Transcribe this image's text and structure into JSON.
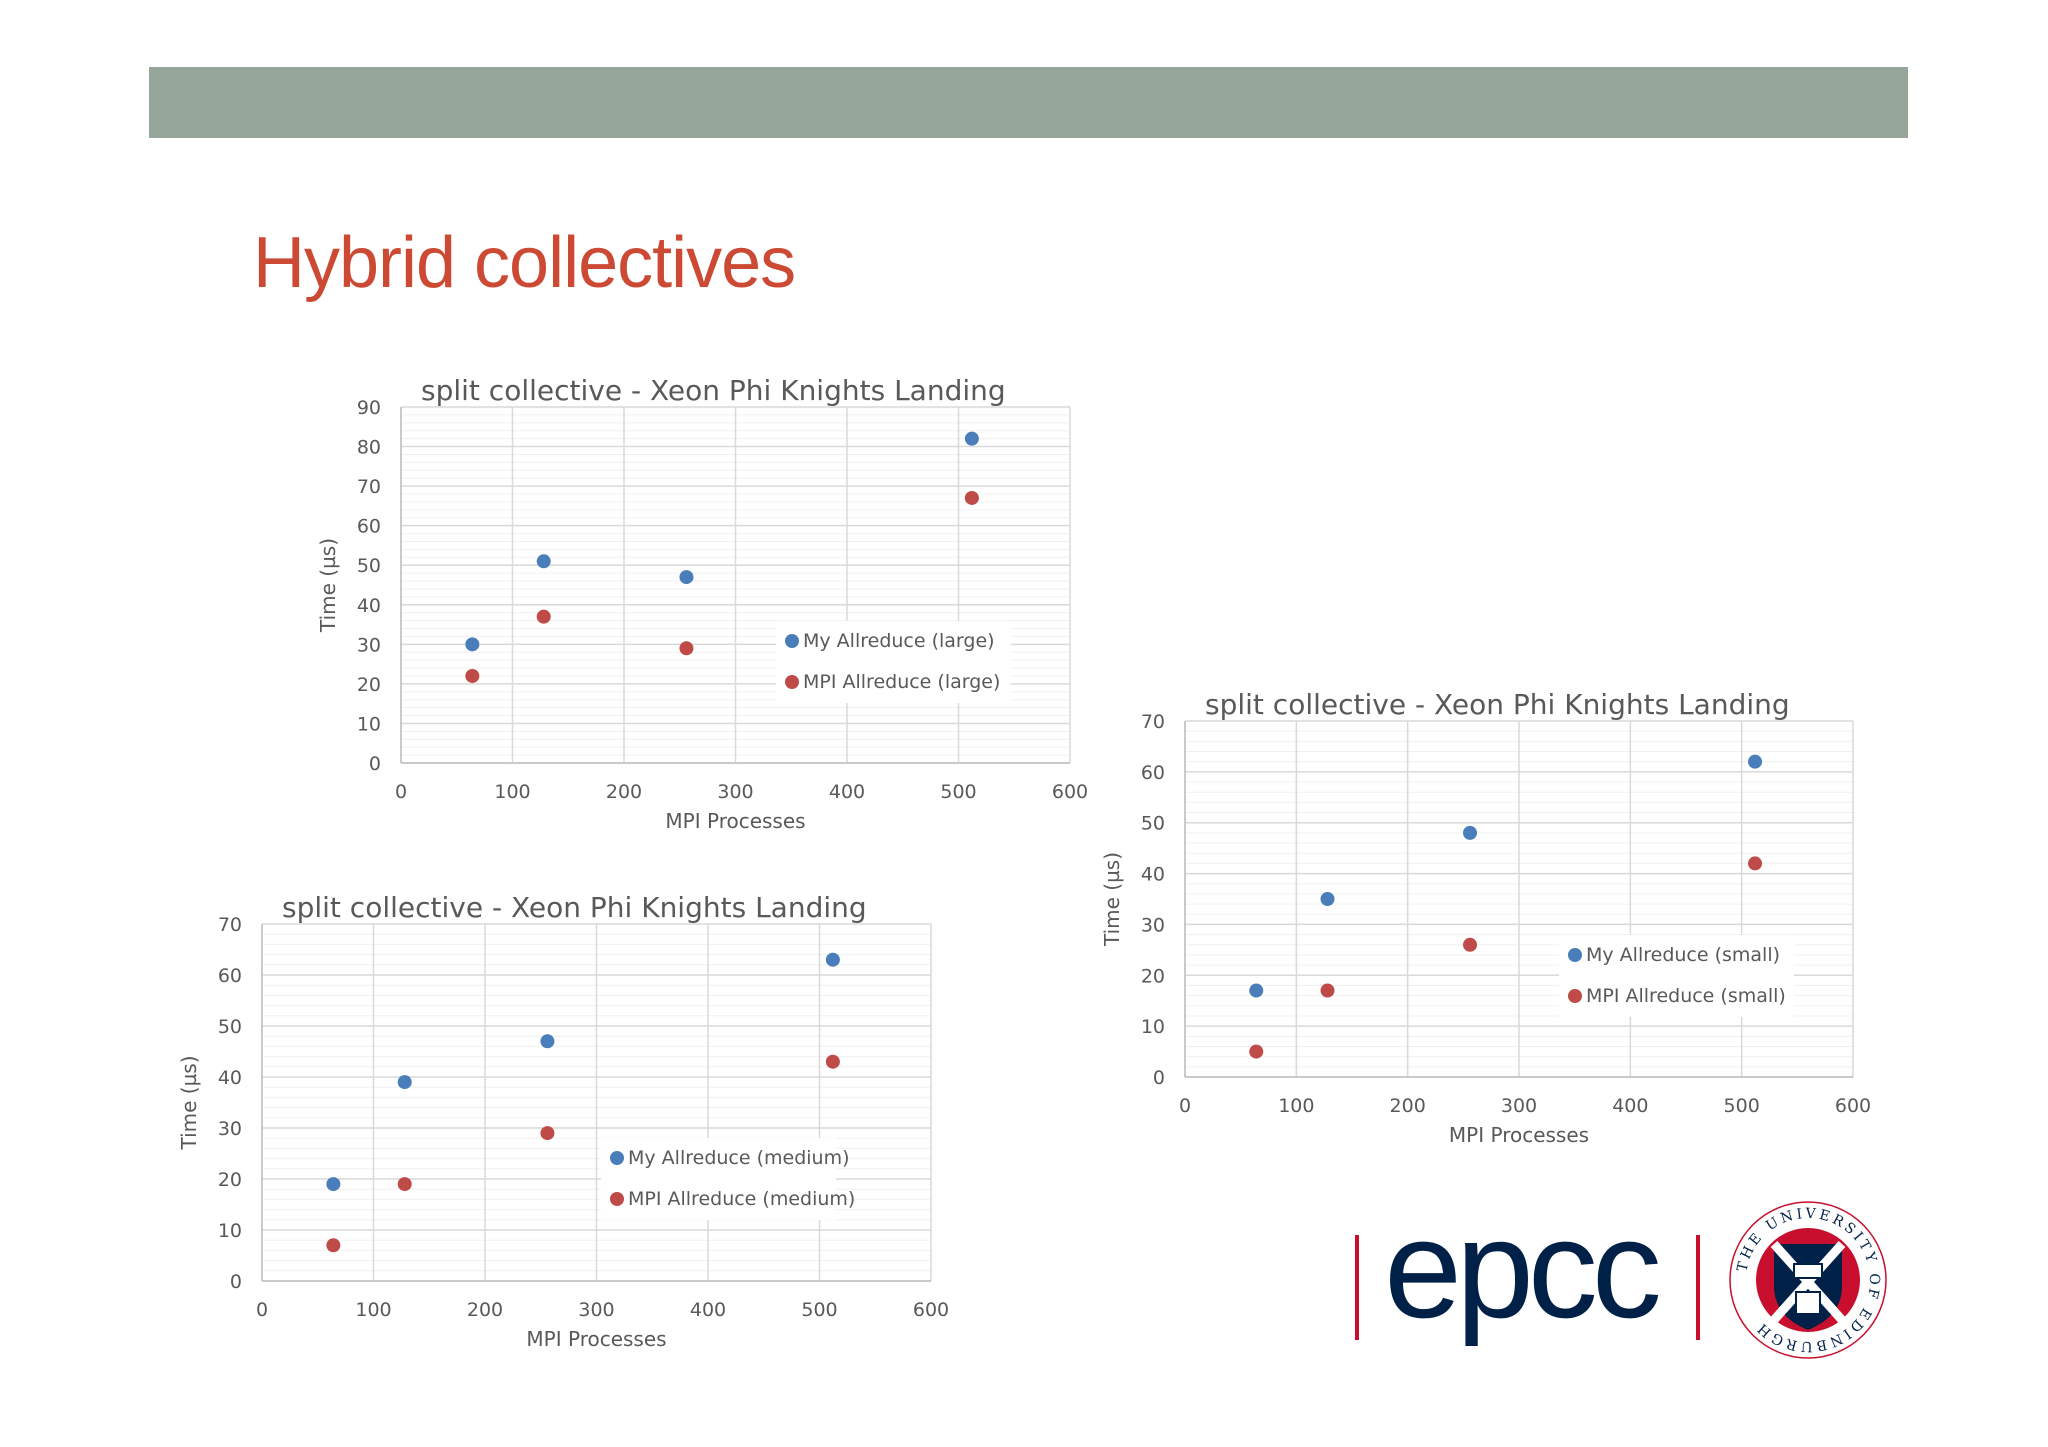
{
  "slide": {
    "title": "Hybrid collectives",
    "colors": {
      "header_bar": "#95a599",
      "title": "#cc4a33",
      "series_my": "#4a7ebb",
      "series_mpi": "#be4b48",
      "logo_text": "#002147",
      "logo_rule": "#c8102e",
      "axis_text": "#595959",
      "gridline": "#d9d9d9",
      "minor_gridline": "#f0f0f0"
    }
  },
  "logo": {
    "text": "epcc",
    "crest_text": "THE UNIVERSITY OF EDINBURGH"
  },
  "chart_data": [
    {
      "type": "scatter",
      "title": "split collective - Xeon Phi Knights Landing",
      "xlabel": "MPI Processes",
      "ylabel": "Time (µs)",
      "xlim": [
        0,
        600
      ],
      "ylim": [
        0,
        90
      ],
      "xticks": [
        0,
        100,
        200,
        300,
        400,
        500,
        600
      ],
      "yticks": [
        0,
        10,
        20,
        30,
        40,
        50,
        60,
        70,
        80,
        90
      ],
      "grid": true,
      "legend": "lower-right",
      "series": [
        {
          "name": "My Allreduce (large)",
          "color": "#4a7ebb",
          "x": [
            64,
            128,
            256,
            512
          ],
          "y": [
            30,
            51,
            47,
            82
          ]
        },
        {
          "name": "MPI Allreduce (large)",
          "color": "#be4b48",
          "x": [
            64,
            128,
            256,
            512
          ],
          "y": [
            22,
            37,
            29,
            67
          ]
        }
      ]
    },
    {
      "type": "scatter",
      "title": "split collective - Xeon Phi Knights Landing",
      "xlabel": "MPI Processes",
      "ylabel": "Time (µs)",
      "xlim": [
        0,
        600
      ],
      "ylim": [
        0,
        70
      ],
      "xticks": [
        0,
        100,
        200,
        300,
        400,
        500,
        600
      ],
      "yticks": [
        0,
        10,
        20,
        30,
        40,
        50,
        60,
        70
      ],
      "grid": true,
      "legend": "lower-right",
      "series": [
        {
          "name": "My Allreduce (medium)",
          "color": "#4a7ebb",
          "x": [
            64,
            128,
            256,
            512
          ],
          "y": [
            19,
            39,
            47,
            63
          ]
        },
        {
          "name": "MPI Allreduce (medium)",
          "color": "#be4b48",
          "x": [
            64,
            128,
            256,
            512
          ],
          "y": [
            7,
            19,
            29,
            43
          ]
        }
      ]
    },
    {
      "type": "scatter",
      "title": "split collective - Xeon Phi Knights Landing",
      "xlabel": "MPI Processes",
      "ylabel": "Time (µs)",
      "xlim": [
        0,
        600
      ],
      "ylim": [
        0,
        70
      ],
      "xticks": [
        0,
        100,
        200,
        300,
        400,
        500,
        600
      ],
      "yticks": [
        0,
        10,
        20,
        30,
        40,
        50,
        60,
        70
      ],
      "grid": true,
      "legend": "lower-right",
      "series": [
        {
          "name": "My Allreduce (small)",
          "color": "#4a7ebb",
          "x": [
            64,
            128,
            256,
            512
          ],
          "y": [
            17,
            35,
            48,
            62
          ]
        },
        {
          "name": "MPI Allreduce (small)",
          "color": "#be4b48",
          "x": [
            64,
            128,
            256,
            512
          ],
          "y": [
            5,
            17,
            26,
            42
          ]
        }
      ]
    }
  ]
}
